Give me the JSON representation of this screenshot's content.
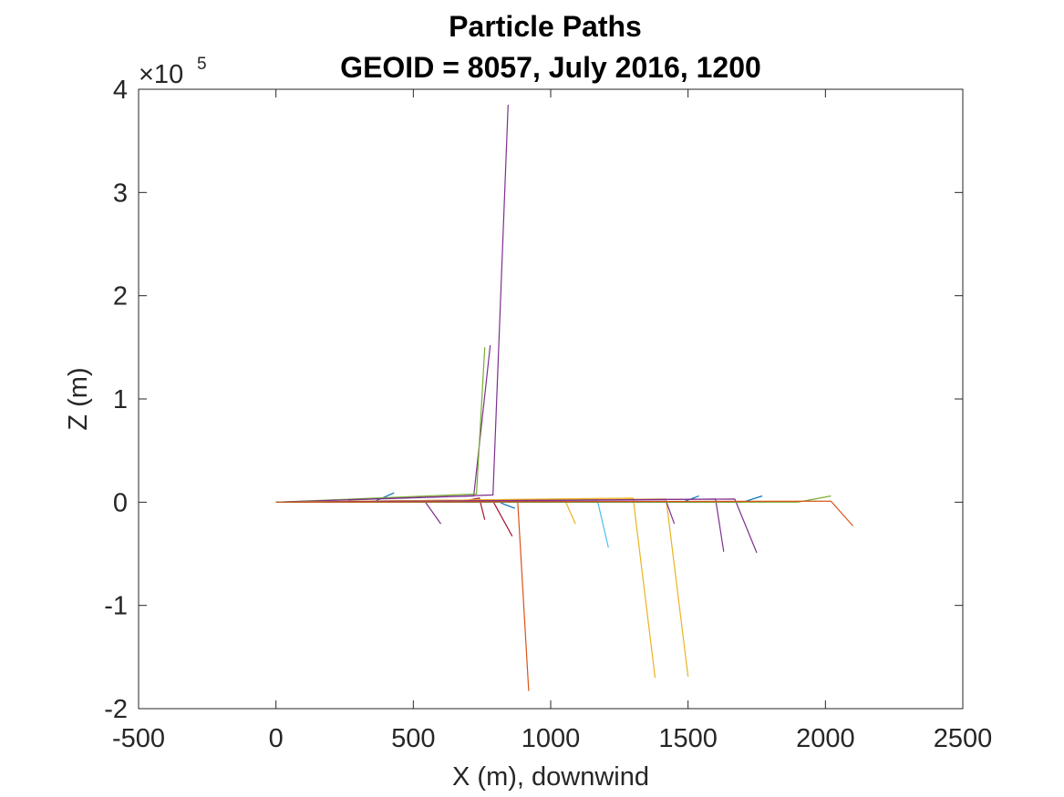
{
  "chart_data": {
    "type": "line",
    "title": [
      "Particle Paths",
      "GEOID = 8057, July 2016, 1200"
    ],
    "xlabel": "X (m), downwind",
    "ylabel": "Z (m)",
    "xlim": [
      -500,
      2500
    ],
    "ylim": [
      -200000,
      400000
    ],
    "y_exponent_label": "×10",
    "y_exponent": "5",
    "x_ticks": [
      -500,
      0,
      500,
      1000,
      1500,
      2000,
      2500
    ],
    "x_tick_labels": [
      "-500",
      "0",
      "500",
      "1000",
      "1500",
      "2000",
      "2500"
    ],
    "y_ticks": [
      -200000,
      -100000,
      0,
      100000,
      200000,
      300000,
      400000
    ],
    "y_tick_labels": [
      "-2",
      "-1",
      "0",
      "1",
      "2",
      "3",
      "4"
    ],
    "grid": false,
    "box": true,
    "series": [
      {
        "color": "#0072BD",
        "x": [
          0,
          210,
          360,
          430
        ],
        "y": [
          0,
          0,
          800,
          9000
        ]
      },
      {
        "color": "#4DBEEE",
        "x": [
          0,
          400,
          700,
          760
        ],
        "y": [
          0,
          0,
          0,
          0
        ]
      },
      {
        "color": "#7E2F8E",
        "x": [
          0,
          540,
          600
        ],
        "y": [
          0,
          1500,
          -21000
        ]
      },
      {
        "color": "#A2142F",
        "x": [
          0,
          700,
          740,
          760
        ],
        "y": [
          0,
          2000,
          4000,
          -17000
        ]
      },
      {
        "color": "#7E2F8E",
        "x": [
          0,
          720,
          780
        ],
        "y": [
          0,
          6000,
          152000
        ]
      },
      {
        "color": "#77AC30",
        "x": [
          0,
          730,
          760
        ],
        "y": [
          0,
          8000,
          150000
        ]
      },
      {
        "color": "#7E2F8E",
        "x": [
          0,
          790,
          845
        ],
        "y": [
          0,
          7000,
          385000
        ]
      },
      {
        "color": "#A2142F",
        "x": [
          0,
          790,
          860
        ],
        "y": [
          0,
          1000,
          -33000
        ]
      },
      {
        "color": "#0072BD",
        "x": [
          0,
          800,
          830,
          870
        ],
        "y": [
          0,
          2000,
          -2000,
          -6000
        ]
      },
      {
        "color": "#D95319",
        "x": [
          0,
          880,
          920
        ],
        "y": [
          0,
          1000,
          -183000
        ]
      },
      {
        "color": "#EDB120",
        "x": [
          0,
          1050,
          1090
        ],
        "y": [
          0,
          3000,
          -21000
        ]
      },
      {
        "color": "#4DBEEE",
        "x": [
          0,
          1170,
          1210
        ],
        "y": [
          0,
          2000,
          -44000
        ]
      },
      {
        "color": "#EDB120",
        "x": [
          0,
          1300,
          1380
        ],
        "y": [
          0,
          4000,
          -170000
        ]
      },
      {
        "color": "#EDB120",
        "x": [
          0,
          1420,
          1500
        ],
        "y": [
          0,
          3000,
          -169000
        ]
      },
      {
        "color": "#7E2F8E",
        "x": [
          0,
          1420,
          1450
        ],
        "y": [
          0,
          1000,
          -21000
        ]
      },
      {
        "color": "#0072BD",
        "x": [
          0,
          1480,
          1540
        ],
        "y": [
          0,
          0,
          6000
        ]
      },
      {
        "color": "#7E2F8E",
        "x": [
          0,
          1600,
          1630
        ],
        "y": [
          0,
          3000,
          -48000
        ]
      },
      {
        "color": "#7E2F8E",
        "x": [
          0,
          1670,
          1750
        ],
        "y": [
          0,
          3000,
          -49000
        ]
      },
      {
        "color": "#0072BD",
        "x": [
          0,
          1700,
          1770
        ],
        "y": [
          0,
          0,
          6000
        ]
      },
      {
        "color": "#77AC30",
        "x": [
          0,
          1900,
          2020
        ],
        "y": [
          0,
          0,
          6000
        ]
      },
      {
        "color": "#D95319",
        "x": [
          0,
          2020,
          2100
        ],
        "y": [
          0,
          1000,
          -23000
        ]
      }
    ]
  }
}
